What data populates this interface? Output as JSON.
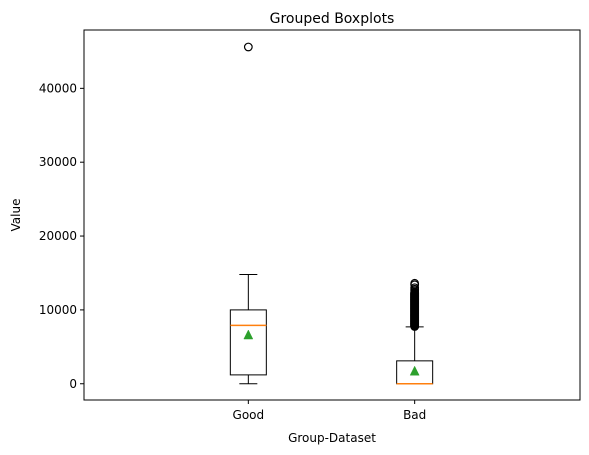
{
  "chart_data": {
    "type": "box",
    "title": "Grouped Boxplots",
    "xlabel": "Group-Dataset",
    "ylabel": "Value",
    "ylim": [
      -2200,
      47900
    ],
    "yticks": [
      0,
      10000,
      20000,
      30000,
      40000
    ],
    "ytick_labels": [
      "0",
      "10000",
      "20000",
      "30000",
      "40000"
    ],
    "categories": [
      "Good",
      "Bad"
    ],
    "grid": false,
    "series": [
      {
        "category": "Good",
        "whisker_low": 0,
        "q1": 1200,
        "median": 7900,
        "q3": 10000,
        "whisker_high": 14800,
        "mean": 6600,
        "outliers": [
          45600
        ]
      },
      {
        "category": "Bad",
        "whisker_low": 0,
        "q1": 0,
        "median": 0,
        "q3": 3100,
        "whisker_high": 7700,
        "mean": 1700,
        "outliers": [
          7750,
          7800,
          7850,
          7900,
          7950,
          8000,
          8050,
          8100,
          8150,
          8200,
          8250,
          8300,
          8350,
          8400,
          8450,
          8500,
          8550,
          8600,
          8650,
          8700,
          8750,
          8800,
          8850,
          8900,
          8950,
          9000,
          9050,
          9100,
          9150,
          9200,
          9250,
          9300,
          9350,
          9400,
          9450,
          9500,
          9550,
          9600,
          9650,
          9700,
          9750,
          9800,
          9850,
          9900,
          9950,
          10000,
          10050,
          10100,
          10150,
          10200,
          10250,
          10300,
          10350,
          10400,
          10450,
          10500,
          10550,
          10600,
          10650,
          10700,
          10750,
          10800,
          10850,
          10900,
          10950,
          11000,
          11050,
          11100,
          11150,
          11200,
          11250,
          11300,
          11350,
          11400,
          11450,
          11500,
          11550,
          11600,
          11650,
          11700,
          11750,
          11800,
          11850,
          11900,
          11950,
          12000,
          12050,
          12100,
          12150,
          12200,
          12250,
          12300,
          12400,
          12600,
          12800,
          13000,
          13400,
          13600
        ]
      }
    ],
    "colors": {
      "box": "#000000",
      "median": "#ff7f0e",
      "mean": "#2ca02c",
      "axes": "#000000",
      "background": "#ffffff"
    }
  }
}
